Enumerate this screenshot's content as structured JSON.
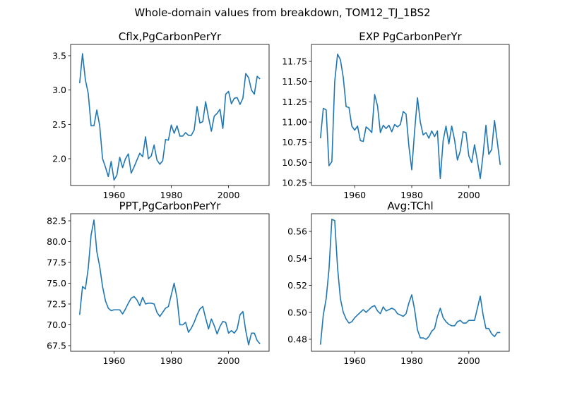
{
  "title": "Whole-domain values from breakdown, TOM12_TJ_1BS2",
  "chart_data": [
    {
      "type": "line",
      "title": "Cflx,PgCarbonPerYr",
      "color": "#1f77b4",
      "x": [
        1948,
        1949,
        1950,
        1951,
        1952,
        1953,
        1954,
        1955,
        1956,
        1957,
        1958,
        1959,
        1960,
        1961,
        1962,
        1963,
        1964,
        1965,
        1966,
        1967,
        1968,
        1969,
        1970,
        1971,
        1972,
        1973,
        1974,
        1975,
        1976,
        1977,
        1978,
        1979,
        1980,
        1981,
        1982,
        1983,
        1984,
        1985,
        1986,
        1987,
        1988,
        1989,
        1990,
        1991,
        1992,
        1993,
        1994,
        1995,
        1996,
        1997,
        1998,
        1999,
        2000,
        2001,
        2002,
        2003,
        2004,
        2005,
        2006,
        2007,
        2008,
        2009,
        2010,
        2011
      ],
      "values": [
        3.1,
        3.53,
        3.15,
        2.95,
        2.48,
        2.48,
        2.71,
        2.48,
        2.0,
        1.88,
        1.74,
        1.96,
        1.69,
        1.76,
        2.02,
        1.87,
        2.0,
        2.07,
        1.79,
        1.88,
        1.98,
        2.08,
        2.03,
        2.32,
        2.0,
        2.04,
        2.2,
        1.98,
        1.92,
        1.97,
        2.28,
        2.27,
        2.49,
        2.37,
        2.48,
        2.33,
        2.33,
        2.38,
        2.34,
        2.34,
        2.42,
        2.76,
        2.52,
        2.54,
        2.83,
        2.6,
        2.4,
        2.62,
        2.66,
        2.72,
        2.44,
        2.94,
        2.98,
        2.8,
        2.88,
        2.89,
        2.79,
        2.88,
        3.24,
        3.18,
        3.0,
        2.94,
        3.2,
        3.16
      ],
      "xlim": [
        1944.85,
        2014.15
      ],
      "xticks": [
        1960,
        1980,
        2000
      ],
      "ylim": [
        1.61,
        3.664
      ],
      "yticks": [
        {
          "value": 2,
          "label": "2.0"
        },
        2.5,
        {
          "value": 3,
          "label": "3.0"
        },
        3.5
      ]
    },
    {
      "type": "line",
      "title": "EXP PgCarbonPerYr",
      "color": "#1f77b4",
      "x": [
        1948,
        1949,
        1950,
        1951,
        1952,
        1953,
        1954,
        1955,
        1956,
        1957,
        1958,
        1959,
        1960,
        1961,
        1962,
        1963,
        1964,
        1965,
        1966,
        1967,
        1968,
        1969,
        1970,
        1971,
        1972,
        1973,
        1974,
        1975,
        1976,
        1977,
        1978,
        1979,
        1980,
        1981,
        1982,
        1983,
        1984,
        1985,
        1986,
        1987,
        1988,
        1989,
        1990,
        1991,
        1992,
        1993,
        1994,
        1995,
        1996,
        1997,
        1998,
        1999,
        2000,
        2001,
        2002,
        2003,
        2004,
        2005,
        2006,
        2007,
        2008,
        2009,
        2010,
        2011
      ],
      "values": [
        10.8,
        11.17,
        11.15,
        10.46,
        10.51,
        11.5,
        11.84,
        11.77,
        11.55,
        11.19,
        11.18,
        10.95,
        10.9,
        10.95,
        10.77,
        10.76,
        10.94,
        10.91,
        10.87,
        11.34,
        11.2,
        10.87,
        10.96,
        10.92,
        10.96,
        10.88,
        10.97,
        10.94,
        10.97,
        11.13,
        11.1,
        10.7,
        10.41,
        10.89,
        11.3,
        11.0,
        10.84,
        10.87,
        10.8,
        10.89,
        10.82,
        10.89,
        10.3,
        10.77,
        10.95,
        10.73,
        10.95,
        10.78,
        10.53,
        10.64,
        10.88,
        10.87,
        10.58,
        10.5,
        10.72,
        10.52,
        10.3,
        10.6,
        10.96,
        10.6,
        10.66,
        11.02,
        10.75,
        10.47
      ],
      "xlim": [
        1944.85,
        2014.15
      ],
      "xticks": [
        1960,
        1980,
        2000
      ],
      "ylim": [
        10.215,
        11.96
      ],
      "yticks": [
        10.25,
        {
          "value": 10.5,
          "label": "10.50"
        },
        10.75,
        {
          "value": 11,
          "label": "11.00"
        },
        11.25,
        {
          "value": 11.5,
          "label": "11.50"
        },
        11.75
      ]
    },
    {
      "type": "line",
      "title": "PPT,PgCarbonPerYr",
      "color": "#1f77b4",
      "x": [
        1948,
        1949,
        1950,
        1951,
        1952,
        1953,
        1954,
        1955,
        1956,
        1957,
        1958,
        1959,
        1960,
        1961,
        1962,
        1963,
        1964,
        1965,
        1966,
        1967,
        1968,
        1969,
        1970,
        1971,
        1972,
        1973,
        1974,
        1975,
        1976,
        1977,
        1978,
        1979,
        1980,
        1981,
        1982,
        1983,
        1984,
        1985,
        1986,
        1987,
        1988,
        1989,
        1990,
        1991,
        1992,
        1993,
        1994,
        1995,
        1996,
        1997,
        1998,
        1999,
        2000,
        2001,
        2002,
        2003,
        2004,
        2005,
        2006,
        2007,
        2008,
        2009,
        2010,
        2011
      ],
      "values": [
        71.2,
        74.6,
        74.3,
        76.8,
        80.8,
        82.6,
        78.8,
        77.0,
        74.6,
        72.9,
        72.0,
        71.7,
        71.8,
        71.8,
        71.8,
        71.3,
        71.9,
        72.6,
        73.2,
        73.4,
        73.0,
        72.3,
        73.3,
        72.5,
        72.6,
        72.6,
        72.5,
        71.5,
        71.0,
        71.5,
        72.0,
        72.2,
        73.6,
        75.0,
        73.2,
        70.0,
        70.0,
        70.3,
        69.1,
        69.6,
        70.3,
        71.2,
        71.9,
        72.2,
        70.8,
        69.5,
        70.7,
        69.9,
        68.9,
        69.8,
        70.4,
        70.3,
        69.0,
        69.3,
        69.0,
        69.5,
        71.2,
        71.6,
        69.3,
        67.6,
        69.0,
        69.0,
        68.1,
        67.7
      ],
      "xlim": [
        1944.85,
        2014.15
      ],
      "xticks": [
        1960,
        1980,
        2000
      ],
      "ylim": [
        66.82,
        83.35
      ],
      "yticks": [
        67.5,
        {
          "value": 70,
          "label": "70.0"
        },
        72.5,
        {
          "value": 75,
          "label": "75.0"
        },
        77.5,
        {
          "value": 80,
          "label": "80.0"
        },
        82.5
      ]
    },
    {
      "type": "line",
      "title": "Avg:TChl",
      "color": "#1f77b4",
      "x": [
        1948,
        1949,
        1950,
        1951,
        1952,
        1953,
        1954,
        1955,
        1956,
        1957,
        1958,
        1959,
        1960,
        1961,
        1962,
        1963,
        1964,
        1965,
        1966,
        1967,
        1968,
        1969,
        1970,
        1971,
        1972,
        1973,
        1974,
        1975,
        1976,
        1977,
        1978,
        1979,
        1980,
        1981,
        1982,
        1983,
        1984,
        1985,
        1986,
        1987,
        1988,
        1989,
        1990,
        1991,
        1992,
        1993,
        1994,
        1995,
        1996,
        1997,
        1998,
        1999,
        2000,
        2001,
        2002,
        2003,
        2004,
        2005,
        2006,
        2007,
        2008,
        2009,
        2010,
        2011
      ],
      "values": [
        0.476,
        0.498,
        0.51,
        0.532,
        0.569,
        0.568,
        0.533,
        0.51,
        0.5,
        0.495,
        0.492,
        0.493,
        0.496,
        0.498,
        0.5,
        0.502,
        0.5,
        0.502,
        0.504,
        0.505,
        0.501,
        0.499,
        0.504,
        0.501,
        0.502,
        0.503,
        0.502,
        0.499,
        0.498,
        0.497,
        0.499,
        0.507,
        0.513,
        0.502,
        0.487,
        0.481,
        0.481,
        0.48,
        0.482,
        0.486,
        0.488,
        0.497,
        0.503,
        0.496,
        0.493,
        0.491,
        0.49,
        0.49,
        0.493,
        0.494,
        0.492,
        0.492,
        0.494,
        0.494,
        0.494,
        0.503,
        0.512,
        0.498,
        0.488,
        0.488,
        0.484,
        0.482,
        0.485,
        0.485
      ],
      "xlim": [
        1944.85,
        2014.15
      ],
      "xticks": [
        1960,
        1980,
        2000
      ],
      "ylim": [
        0.4711,
        0.5731
      ],
      "yticks": [
        0.48,
        {
          "value": 0.5,
          "label": "0.50"
        },
        0.52,
        0.54,
        0.56
      ]
    }
  ]
}
